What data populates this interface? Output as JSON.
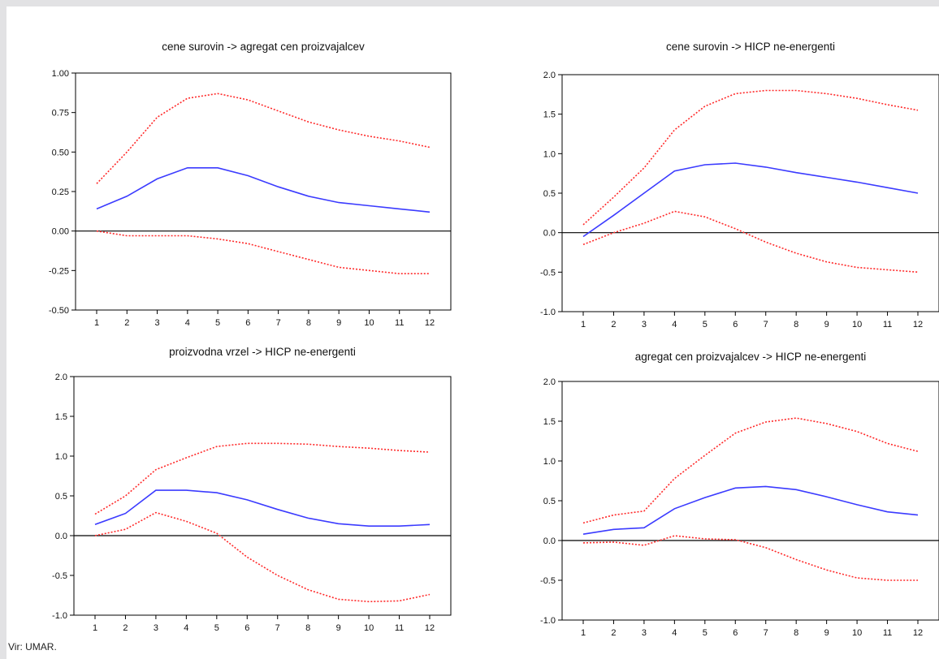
{
  "colors": {
    "impulse": "#3b3bff",
    "band": "#ff2a2a",
    "axis": "#000000",
    "zero": "#000000"
  },
  "source": "Vir: UMAR.",
  "chart_data": [
    {
      "type": "line",
      "title": "cene surovin -> agregat cen proizvajalcev",
      "x": [
        1,
        2,
        3,
        4,
        5,
        6,
        7,
        8,
        9,
        10,
        11,
        12
      ],
      "ylim": [
        -0.5,
        1.0
      ],
      "yticks": [
        "1.00",
        "0.75",
        "0.50",
        "0.25",
        "0.00",
        "-0.25",
        "-0.50"
      ],
      "ytick_values": [
        1.0,
        0.75,
        0.5,
        0.25,
        0.0,
        -0.25,
        -0.5
      ],
      "series": [
        {
          "role": "impulse",
          "values": [
            0.14,
            0.22,
            0.33,
            0.4,
            0.4,
            0.35,
            0.28,
            0.22,
            0.18,
            0.16,
            0.14,
            0.12
          ]
        },
        {
          "role": "upper",
          "values": [
            0.3,
            0.5,
            0.72,
            0.84,
            0.87,
            0.83,
            0.76,
            0.69,
            0.64,
            0.6,
            0.57,
            0.53
          ]
        },
        {
          "role": "lower",
          "values": [
            0.0,
            -0.03,
            -0.03,
            -0.03,
            -0.05,
            -0.08,
            -0.13,
            -0.18,
            -0.23,
            -0.25,
            -0.27,
            -0.27
          ]
        }
      ]
    },
    {
      "type": "line",
      "title": "cene surovin -> HICP ne-energenti",
      "x": [
        1,
        2,
        3,
        4,
        5,
        6,
        7,
        8,
        9,
        10,
        11,
        12
      ],
      "ylim": [
        -1.0,
        2.0
      ],
      "yticks": [
        "2.0",
        "1.5",
        "1.0",
        "0.5",
        "0.0",
        "-0.5",
        "-1.0"
      ],
      "ytick_values": [
        2.0,
        1.5,
        1.0,
        0.5,
        0.0,
        -0.5,
        -1.0
      ],
      "series": [
        {
          "role": "impulse",
          "values": [
            -0.05,
            0.22,
            0.5,
            0.78,
            0.86,
            0.88,
            0.83,
            0.76,
            0.7,
            0.64,
            0.57,
            0.5
          ]
        },
        {
          "role": "upper",
          "values": [
            0.1,
            0.45,
            0.82,
            1.3,
            1.6,
            1.76,
            1.8,
            1.8,
            1.76,
            1.7,
            1.62,
            1.55
          ]
        },
        {
          "role": "lower",
          "values": [
            -0.15,
            0.0,
            0.12,
            0.27,
            0.2,
            0.05,
            -0.12,
            -0.26,
            -0.37,
            -0.44,
            -0.47,
            -0.5
          ]
        }
      ]
    },
    {
      "type": "line",
      "title": "proizvodna vrzel -> HICP ne-energenti",
      "x": [
        1,
        2,
        3,
        4,
        5,
        6,
        7,
        8,
        9,
        10,
        11,
        12
      ],
      "ylim": [
        -1.0,
        2.0
      ],
      "yticks": [
        "2.0",
        "1.5",
        "1.0",
        "0.5",
        "0.0",
        "-0.5",
        "-1.0"
      ],
      "ytick_values": [
        2.0,
        1.5,
        1.0,
        0.5,
        0.0,
        -0.5,
        -1.0
      ],
      "series": [
        {
          "role": "impulse",
          "values": [
            0.14,
            0.28,
            0.57,
            0.57,
            0.54,
            0.45,
            0.33,
            0.22,
            0.15,
            0.12,
            0.12,
            0.14
          ]
        },
        {
          "role": "upper",
          "values": [
            0.27,
            0.5,
            0.83,
            0.98,
            1.12,
            1.16,
            1.16,
            1.15,
            1.12,
            1.1,
            1.07,
            1.05
          ]
        },
        {
          "role": "lower",
          "values": [
            0.0,
            0.08,
            0.29,
            0.18,
            0.03,
            -0.27,
            -0.5,
            -0.68,
            -0.8,
            -0.83,
            -0.82,
            -0.74
          ]
        }
      ]
    },
    {
      "type": "line",
      "title": "agregat cen proizvajalcev -> HICP ne-energenti",
      "x": [
        1,
        2,
        3,
        4,
        5,
        6,
        7,
        8,
        9,
        10,
        11,
        12
      ],
      "ylim": [
        -1.0,
        2.0
      ],
      "yticks": [
        "2.0",
        "1.5",
        "1.0",
        "0.5",
        "0.0",
        "-0.5",
        "-1.0"
      ],
      "ytick_values": [
        2.0,
        1.5,
        1.0,
        0.5,
        0.0,
        -0.5,
        -1.0
      ],
      "series": [
        {
          "role": "impulse",
          "values": [
            0.08,
            0.14,
            0.16,
            0.4,
            0.54,
            0.66,
            0.68,
            0.64,
            0.55,
            0.45,
            0.36,
            0.32
          ]
        },
        {
          "role": "upper",
          "values": [
            0.22,
            0.32,
            0.37,
            0.78,
            1.07,
            1.35,
            1.49,
            1.54,
            1.47,
            1.37,
            1.22,
            1.12
          ]
        },
        {
          "role": "lower",
          "values": [
            -0.03,
            -0.02,
            -0.06,
            0.06,
            0.02,
            0.01,
            -0.09,
            -0.24,
            -0.37,
            -0.47,
            -0.5,
            -0.5
          ]
        }
      ]
    }
  ]
}
